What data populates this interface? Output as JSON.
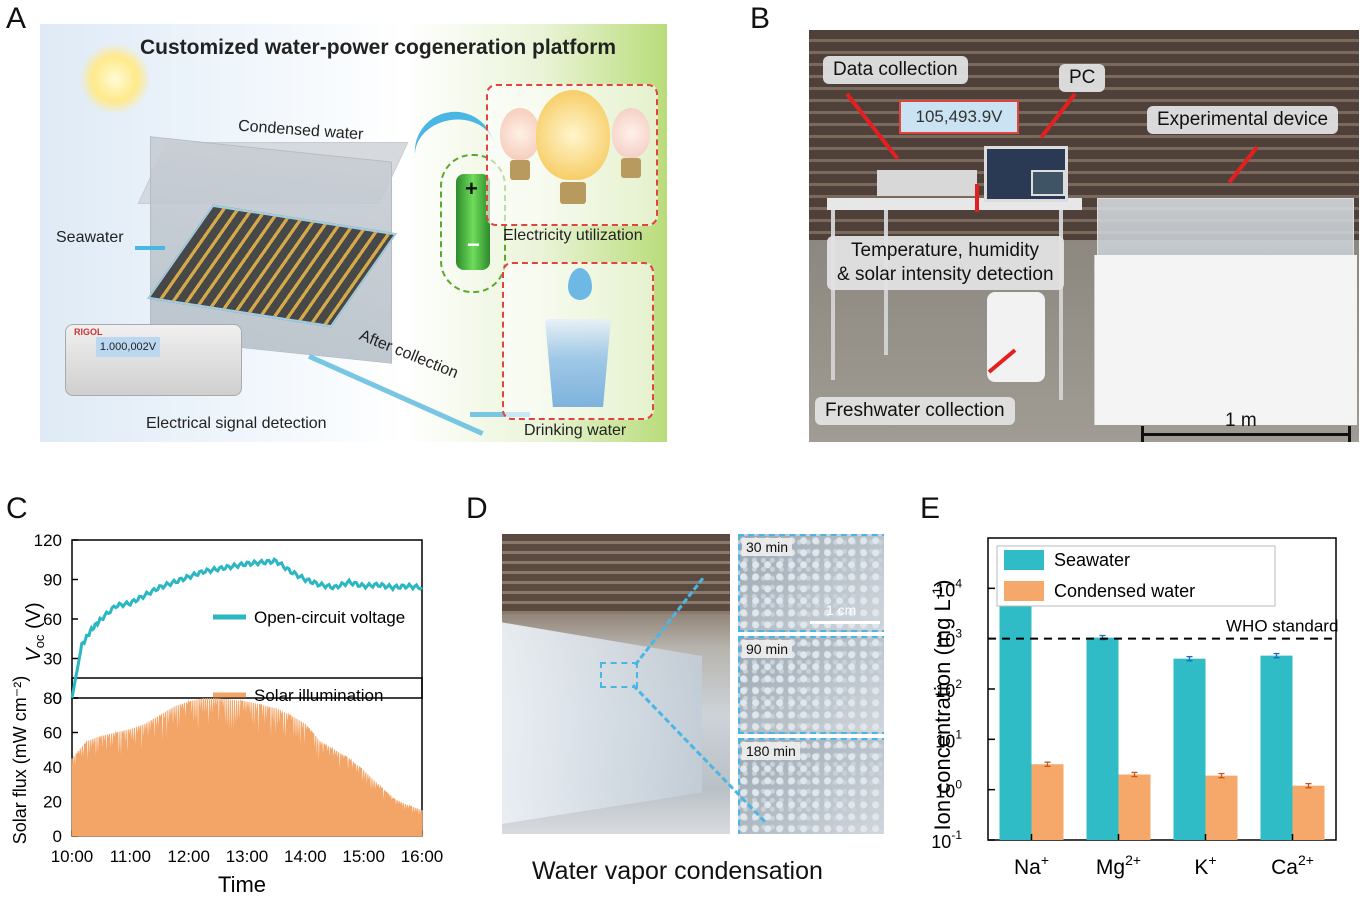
{
  "panels": {
    "a": {
      "label": "A"
    },
    "b": {
      "label": "B"
    },
    "c": {
      "label": "C"
    },
    "d": {
      "label": "D"
    },
    "e": {
      "label": "E"
    }
  },
  "panel_a": {
    "title": "Customized water-power cogeneration platform",
    "condensed_water": "Condensed water",
    "seawater": "Seawater",
    "after_collection": "After collection",
    "electrical_signal": "Electrical signal detection",
    "electricity_utilization": "Electricity utilization",
    "drinking_water": "Drinking water",
    "meter_reading": "1.000,002V",
    "meter_brand": "RIGOL",
    "battery_plus": "+",
    "battery_minus": "−"
  },
  "panel_b": {
    "data_collection": "Data collection",
    "pc": "PC",
    "experimental_device": "Experimental device",
    "readout": "105,493.9V",
    "temp_line1": "Temperature, humidity",
    "temp_line2": "& solar intensity detection",
    "freshwater": "Freshwater collection",
    "scale": "1 m"
  },
  "panel_c": {
    "xlabel": "Time",
    "top_ylabel_main": "V",
    "top_ylabel_sub": "oc",
    "top_ylabel_unit": " (V)",
    "bottom_ylabel": "Solar flux (mW cm⁻²)",
    "top_legend": "Open-circuit voltage",
    "bottom_legend": "Solar illumination",
    "xticks": [
      "10:00",
      "11:00",
      "12:00",
      "13:00",
      "14:00",
      "15:00",
      "16:00"
    ],
    "top_yticks": [
      "0",
      "30",
      "60",
      "90",
      "120"
    ],
    "bottom_yticks": [
      "0",
      "20",
      "40",
      "60",
      "80"
    ],
    "top_color": "#2ab7c2",
    "bottom_color": "#f3a467"
  },
  "panel_d": {
    "caption": "Water vapor condensation",
    "insets": [
      "30 min",
      "90 min",
      "180 min"
    ],
    "scale": "1 cm",
    "guide_color": "#4ab6e4"
  },
  "panel_e": {
    "ylabel_main": "Ion concentration (mg L",
    "ylabel_sup": "-1",
    "ylabel_end": ")",
    "legend_seawater": "Seawater",
    "legend_condensed": "Condensed water",
    "who": "WHO standard",
    "seawater_color": "#2fbcc6",
    "condensed_color": "#f6a86a",
    "ytick_base": "10",
    "ytick_exps": [
      "-1",
      "0",
      "1",
      "2",
      "3",
      "4"
    ],
    "categories": [
      {
        "base": "Na",
        "sup": "+"
      },
      {
        "base": "Mg",
        "sup": "2+"
      },
      {
        "base": "K",
        "sup": "+"
      },
      {
        "base": "Ca",
        "sup": "2+"
      }
    ]
  },
  "chart_data": [
    {
      "type": "line",
      "title": "",
      "xlabel": "Time",
      "ylabel": "Voc (V)",
      "x": [
        "10:00",
        "10:10",
        "10:20",
        "10:30",
        "10:45",
        "11:00",
        "11:15",
        "11:30",
        "11:45",
        "12:00",
        "12:15",
        "12:30",
        "12:45",
        "13:00",
        "13:15",
        "13:30",
        "13:45",
        "14:00",
        "14:15",
        "14:30",
        "14:45",
        "15:00",
        "15:15",
        "15:30",
        "15:45",
        "16:00"
      ],
      "series": [
        {
          "name": "Open-circuit voltage",
          "values": [
            0,
            40,
            52,
            60,
            70,
            72,
            78,
            84,
            88,
            92,
            96,
            98,
            100,
            102,
            103,
            104,
            96,
            90,
            86,
            84,
            88,
            85,
            86,
            84,
            85,
            84
          ]
        }
      ],
      "ylim": [
        0,
        120
      ]
    },
    {
      "type": "line",
      "title": "",
      "xlabel": "Time",
      "ylabel": "Solar flux (mW cm-2)",
      "x": [
        "10:00",
        "10:15",
        "10:30",
        "10:45",
        "11:00",
        "11:15",
        "11:30",
        "11:45",
        "12:00",
        "12:15",
        "12:30",
        "12:45",
        "13:00",
        "13:15",
        "13:30",
        "13:45",
        "14:00",
        "14:15",
        "14:30",
        "14:45",
        "15:00",
        "15:15",
        "15:30",
        "15:45",
        "16:00"
      ],
      "series": [
        {
          "name": "Solar illumination",
          "values": [
            45,
            55,
            58,
            60,
            62,
            65,
            70,
            75,
            78,
            80,
            80,
            79,
            78,
            76,
            74,
            70,
            65,
            55,
            50,
            45,
            38,
            30,
            22,
            18,
            15
          ]
        }
      ],
      "ylim": [
        0,
        80
      ]
    },
    {
      "type": "bar",
      "title": "",
      "xlabel": "",
      "ylabel": "Ion concentration (mg L-1)",
      "scale": "log",
      "categories": [
        "Na+",
        "Mg2+",
        "K+",
        "Ca2+"
      ],
      "series": [
        {
          "name": "Seawater",
          "values": [
            10000,
            1050,
            400,
            460
          ]
        },
        {
          "name": "Condensed water",
          "values": [
            3.2,
            2.0,
            1.9,
            1.2
          ]
        }
      ],
      "reference_line": {
        "label": "WHO standard",
        "value": 1000
      },
      "ylim": [
        0.1,
        100000
      ]
    }
  ]
}
